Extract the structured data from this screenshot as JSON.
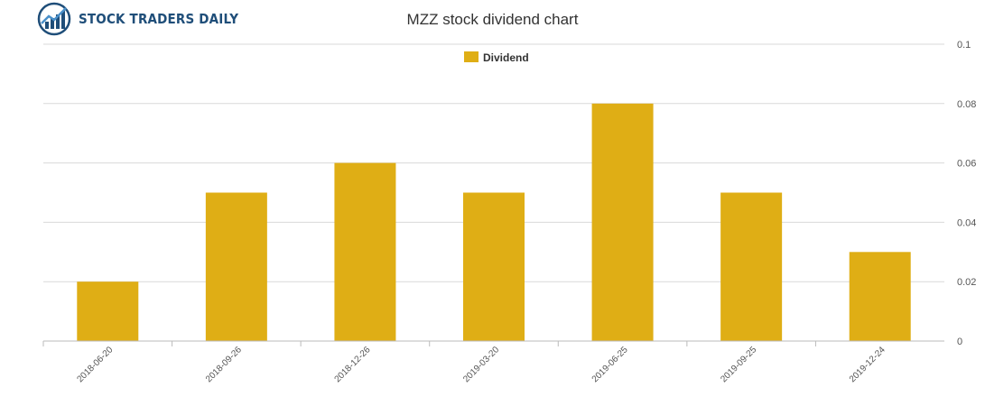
{
  "brand": {
    "name": "STOCK TRADERS DAILY",
    "primary_color": "#1f4e79",
    "icon": "chart-globe-logo-icon"
  },
  "colors": {
    "bar": "#dfae15",
    "grid": "#d9d9d9",
    "axis": "#bbbbbb"
  },
  "chart_data": {
    "type": "bar",
    "title": "MZZ stock dividend chart",
    "categories": [
      "2018-06-20",
      "2018-09-26",
      "2018-12-26",
      "2019-03-20",
      "2019-06-25",
      "2019-09-25",
      "2019-12-24"
    ],
    "series": [
      {
        "name": "Dividend",
        "values": [
          0.02,
          0.05,
          0.06,
          0.05,
          0.08,
          0.05,
          0.03
        ]
      }
    ],
    "ylim": [
      0,
      0.1
    ],
    "yticks": [
      "0",
      "0.02",
      "0.04",
      "0.06",
      "0.08",
      "0.1"
    ],
    "y_axis_side": "right",
    "grid": true,
    "legend_position": "top-center"
  }
}
